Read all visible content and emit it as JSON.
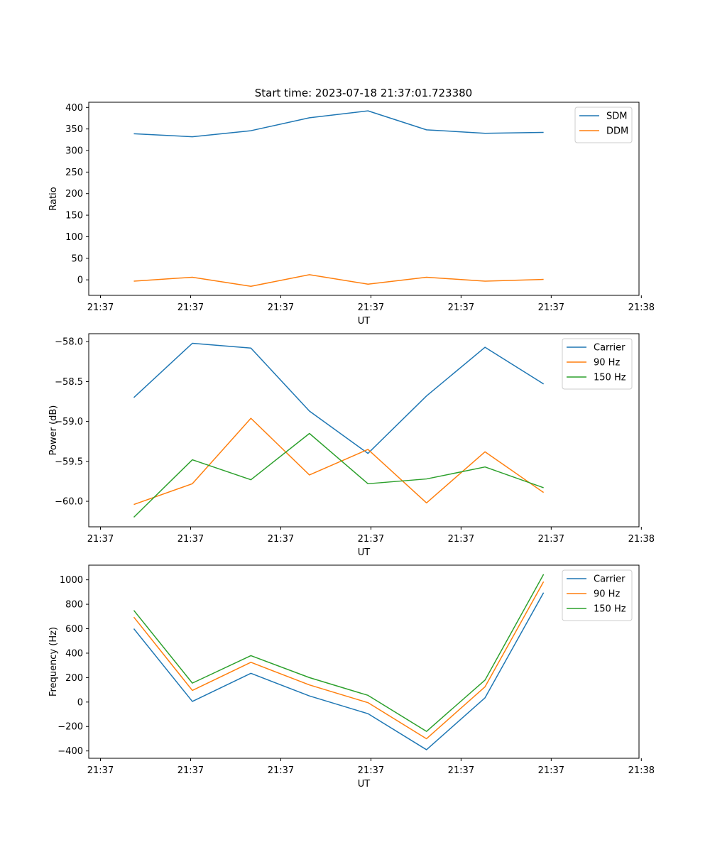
{
  "figure": {
    "suptitle": "Start time: 2023-07-18 21:37:01.723380"
  },
  "chart_data": [
    {
      "type": "line",
      "title": "Start time: 2023-07-18 21:37:01.723380",
      "xlabel": "UT",
      "ylabel": "Ratio",
      "x": [
        1,
        2,
        3,
        4,
        5,
        6,
        7,
        8
      ],
      "xlim": [
        0.23,
        9.63
      ],
      "xtick_positions": [
        0.43,
        1.97,
        3.51,
        5.05,
        6.59,
        8.13,
        9.67
      ],
      "xtick_labels": [
        "21:37",
        "21:37",
        "21:37",
        "21:37",
        "21:37",
        "21:37",
        "21:38"
      ],
      "ylim": [
        -36,
        412
      ],
      "yticks": [
        0,
        50,
        100,
        150,
        200,
        250,
        300,
        350,
        400
      ],
      "ytick_labels": [
        "0",
        "50",
        "100",
        "150",
        "200",
        "250",
        "300",
        "350",
        "400"
      ],
      "legend_position": "top-right",
      "series": [
        {
          "name": "SDM",
          "color": "#1f77b4",
          "values": [
            339,
            332,
            346,
            376,
            392,
            348,
            340,
            342
          ]
        },
        {
          "name": "DDM",
          "color": "#ff7f0e",
          "values": [
            -3,
            6,
            -15,
            12,
            -10,
            6,
            -3,
            1
          ]
        }
      ]
    },
    {
      "type": "line",
      "xlabel": "UT",
      "ylabel": "Power (dB)",
      "x": [
        1,
        2,
        3,
        4,
        5,
        6,
        7,
        8
      ],
      "xlim": [
        0.23,
        9.63
      ],
      "xtick_positions": [
        0.43,
        1.97,
        3.51,
        5.05,
        6.59,
        8.13,
        9.67
      ],
      "xtick_labels": [
        "21:37",
        "21:37",
        "21:37",
        "21:37",
        "21:37",
        "21:37",
        "21:38"
      ],
      "ylim": [
        -60.32,
        -57.9
      ],
      "yticks": [
        -60.0,
        -59.5,
        -59.0,
        -58.5,
        -58.0
      ],
      "ytick_labels": [
        "−60.0",
        "−59.5",
        "−59.0",
        "−58.5",
        "−58.0"
      ],
      "legend_position": "top-right",
      "series": [
        {
          "name": "Carrier",
          "color": "#1f77b4",
          "values": [
            -58.7,
            -58.02,
            -58.08,
            -58.87,
            -59.4,
            -58.68,
            -58.07,
            -58.53
          ]
        },
        {
          "name": "90 Hz",
          "color": "#ff7f0e",
          "values": [
            -60.04,
            -59.78,
            -58.96,
            -59.67,
            -59.35,
            -60.02,
            -59.38,
            -59.89
          ]
        },
        {
          "name": "150 Hz",
          "color": "#2ca02c",
          "values": [
            -60.2,
            -59.48,
            -59.73,
            -59.15,
            -59.78,
            -59.72,
            -59.57,
            -59.83
          ]
        }
      ]
    },
    {
      "type": "line",
      "xlabel": "UT",
      "ylabel": "Frequency (Hz)",
      "x": [
        1,
        2,
        3,
        4,
        5,
        6,
        7,
        8
      ],
      "xlim": [
        0.23,
        9.63
      ],
      "xtick_positions": [
        0.43,
        1.97,
        3.51,
        5.05,
        6.59,
        8.13,
        9.67
      ],
      "xtick_labels": [
        "21:37",
        "21:37",
        "21:37",
        "21:37",
        "21:37",
        "21:37",
        "21:38"
      ],
      "ylim": [
        -460,
        1120
      ],
      "yticks": [
        -400,
        -200,
        0,
        200,
        400,
        600,
        800,
        1000
      ],
      "ytick_labels": [
        "−400",
        "−200",
        "0",
        "200",
        "400",
        "600",
        "800",
        "1000"
      ],
      "legend_position": "top-right",
      "series": [
        {
          "name": "Carrier",
          "color": "#1f77b4",
          "values": [
            600,
            5,
            235,
            50,
            -95,
            -390,
            35,
            895
          ]
        },
        {
          "name": "90 Hz",
          "color": "#ff7f0e",
          "values": [
            695,
            95,
            325,
            140,
            -5,
            -300,
            125,
            985
          ]
        },
        {
          "name": "150 Hz",
          "color": "#2ca02c",
          "values": [
            750,
            155,
            380,
            200,
            55,
            -240,
            180,
            1045
          ]
        }
      ]
    }
  ]
}
